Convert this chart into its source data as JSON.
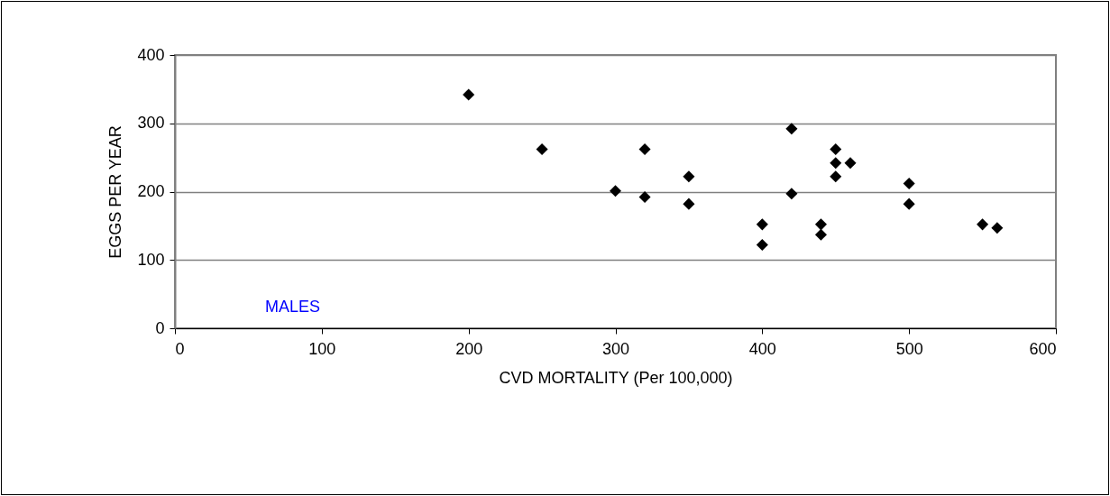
{
  "chart_data": {
    "type": "scatter",
    "xlabel": "CVD MORTALITY (Per 100,000)",
    "ylabel": "EGGS PER YEAR",
    "x": [
      200,
      250,
      300,
      320,
      320,
      350,
      350,
      400,
      400,
      420,
      420,
      440,
      440,
      450,
      450,
      450,
      460,
      500,
      500,
      550,
      560
    ],
    "series": [
      {
        "color": "#000000",
        "values": [
          342,
          262,
          201,
          262,
          192,
          222,
          182,
          152,
          122,
          292,
          197,
          152,
          137,
          262,
          242,
          222,
          242,
          212,
          182,
          152,
          147
        ]
      }
    ],
    "xlim": [
      0,
      600
    ],
    "xticks": [
      0,
      100,
      200,
      300,
      400,
      500,
      600
    ],
    "ylim": [
      0,
      400
    ],
    "yticks": [
      0,
      100,
      200,
      300,
      400
    ],
    "grid": "y",
    "marker": "diamond",
    "annotations": [
      "MALES"
    ]
  }
}
